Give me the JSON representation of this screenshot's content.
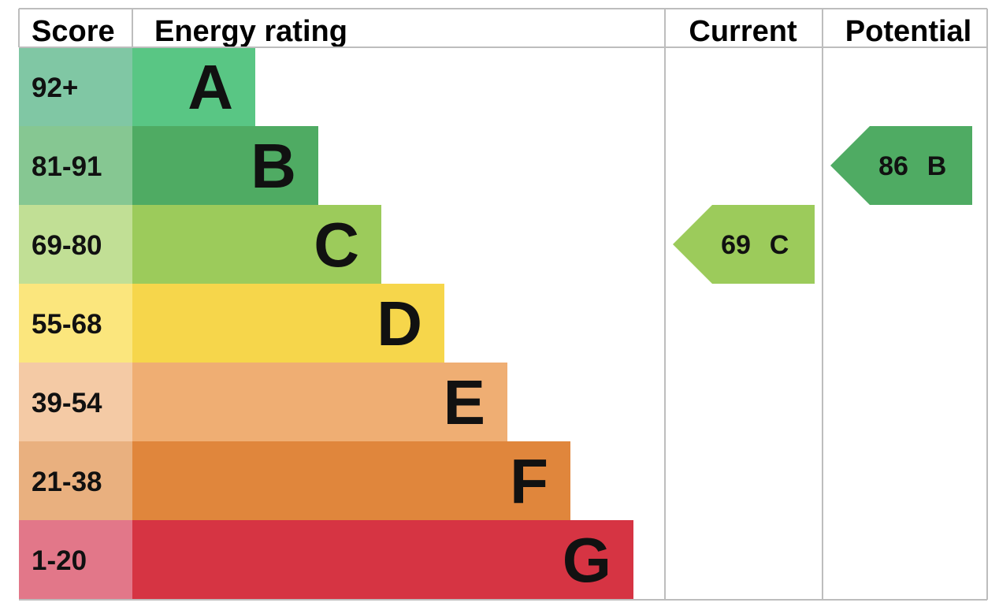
{
  "headers": {
    "score": "Score",
    "rating": "Energy rating",
    "current": "Current",
    "potential": "Potential"
  },
  "chart_data": {
    "type": "bar",
    "bands": [
      {
        "range": "92+",
        "letter": "A",
        "min": 92,
        "max": null,
        "color": "#59c684",
        "score_color": "#80c7a4"
      },
      {
        "range": "81-91",
        "letter": "B",
        "min": 81,
        "max": 91,
        "color": "#4fab63",
        "score_color": "#86c792"
      },
      {
        "range": "69-80",
        "letter": "C",
        "min": 69,
        "max": 80,
        "color": "#9ccb5b",
        "score_color": "#c1df95"
      },
      {
        "range": "55-68",
        "letter": "D",
        "min": 55,
        "max": 68,
        "color": "#f6d64b",
        "score_color": "#fbe67d"
      },
      {
        "range": "39-54",
        "letter": "E",
        "min": 39,
        "max": 54,
        "color": "#efae73",
        "score_color": "#f4caa5"
      },
      {
        "range": "21-38",
        "letter": "F",
        "min": 21,
        "max": 38,
        "color": "#e0863c",
        "score_color": "#e9b07f"
      },
      {
        "range": "1-20",
        "letter": "G",
        "min": 1,
        "max": 20,
        "color": "#d63443",
        "score_color": "#e27789"
      }
    ],
    "current": {
      "score": "69",
      "letter": "C",
      "band": "C",
      "color": "#9ccb5b"
    },
    "potential": {
      "score": "86",
      "letter": "B",
      "band": "B",
      "color": "#4fab63"
    }
  }
}
